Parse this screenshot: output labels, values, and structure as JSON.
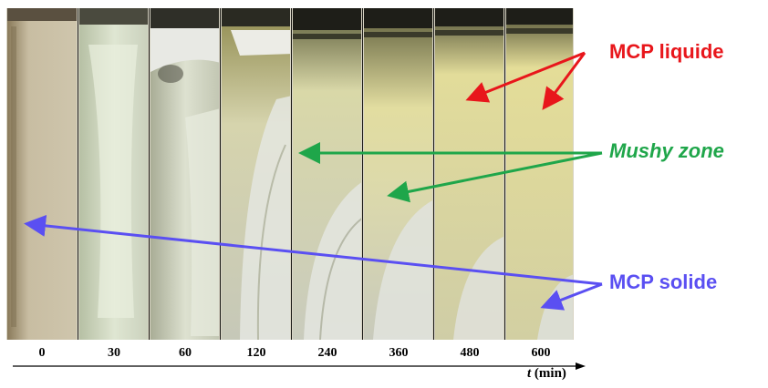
{
  "time_axis": {
    "ticks": [
      "0",
      "30",
      "60",
      "120",
      "240",
      "360",
      "480",
      "600"
    ],
    "title_symbol": "t",
    "title_unit": "(min)"
  },
  "annotations": {
    "liquid": {
      "text": "MCP liquide",
      "color": "#e8161b"
    },
    "mushy": {
      "text": "Mushy zone",
      "color": "#1fa64a"
    },
    "solid": {
      "text": "MCP solide",
      "color": "#5a4ff2"
    }
  },
  "photo_panels": [
    {
      "time": "0",
      "melt_level": 0.0
    },
    {
      "time": "30",
      "melt_level": 0.05
    },
    {
      "time": "60",
      "melt_level": 0.2
    },
    {
      "time": "120",
      "melt_level": 0.35
    },
    {
      "time": "240",
      "melt_level": 0.5
    },
    {
      "time": "360",
      "melt_level": 0.65
    },
    {
      "time": "480",
      "melt_level": 0.8
    },
    {
      "time": "600",
      "melt_level": 0.9
    }
  ]
}
